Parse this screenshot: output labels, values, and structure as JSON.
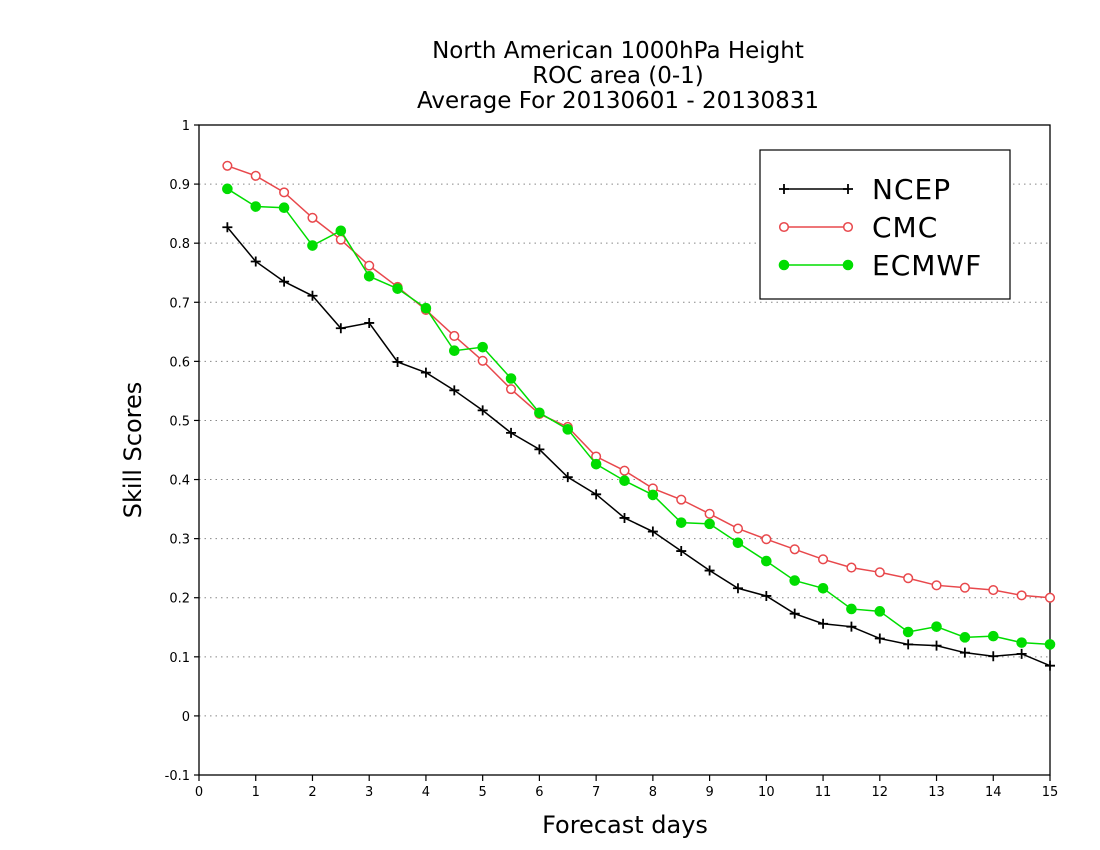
{
  "chart_data": {
    "type": "line",
    "title_lines": [
      "North American 1000hPa Height",
      "ROC area (0-1)",
      "Average For 20130601 - 20130831"
    ],
    "xlabel": "Forecast days",
    "ylabel": "Skill Scores",
    "xlim": [
      0,
      15
    ],
    "ylim": [
      -0.1,
      1
    ],
    "xticks": [
      0,
      1,
      2,
      3,
      4,
      5,
      6,
      7,
      8,
      9,
      10,
      11,
      12,
      13,
      14,
      15
    ],
    "yticks": [
      -0.1,
      0,
      0.1,
      0.2,
      0.3,
      0.4,
      0.5,
      0.6,
      0.7,
      0.8,
      0.9,
      1
    ],
    "ytick_labels": [
      "-0.1",
      "0",
      "0.1",
      "0.2",
      "0.3",
      "0.4",
      "0.5",
      "0.6",
      "0.7",
      "0.8",
      "0.9",
      "1"
    ],
    "grid": "horizontal dotted",
    "legend_position": "top-right",
    "x": [
      0.5,
      1,
      1.5,
      2,
      2.5,
      3,
      3.5,
      4,
      4.5,
      5,
      5.5,
      6,
      6.5,
      7,
      7.5,
      8,
      8.5,
      9,
      9.5,
      10,
      10.5,
      11,
      11.5,
      12,
      12.5,
      13,
      13.5,
      14,
      14.5,
      15
    ],
    "series": [
      {
        "name": "NCEP",
        "color": "#000000",
        "marker": "plus",
        "values": [
          0.827,
          0.769,
          0.735,
          0.711,
          0.656,
          0.665,
          0.599,
          0.581,
          0.551,
          0.517,
          0.479,
          0.451,
          0.404,
          0.375,
          0.335,
          0.312,
          0.279,
          0.246,
          0.216,
          0.203,
          0.173,
          0.156,
          0.151,
          0.131,
          0.121,
          0.119,
          0.107,
          0.101,
          0.105,
          0.085
        ]
      },
      {
        "name": "CMC",
        "color": "#e8484c",
        "marker": "open-circle",
        "values": [
          0.931,
          0.914,
          0.886,
          0.843,
          0.806,
          0.762,
          0.726,
          0.687,
          0.643,
          0.601,
          0.553,
          0.511,
          0.489,
          0.439,
          0.415,
          0.385,
          0.366,
          0.342,
          0.317,
          0.299,
          0.282,
          0.265,
          0.251,
          0.243,
          0.233,
          0.221,
          0.217,
          0.213,
          0.204,
          0.2
        ]
      },
      {
        "name": "ECMWF",
        "color": "#00dd00",
        "marker": "filled-circle",
        "values": [
          0.892,
          0.862,
          0.86,
          0.796,
          0.821,
          0.744,
          0.723,
          0.69,
          0.618,
          0.624,
          0.571,
          0.513,
          0.485,
          0.426,
          0.398,
          0.374,
          0.327,
          0.325,
          0.293,
          0.262,
          0.229,
          0.216,
          0.181,
          0.177,
          0.142,
          0.151,
          0.133,
          0.135,
          0.124,
          0.121
        ]
      }
    ]
  }
}
